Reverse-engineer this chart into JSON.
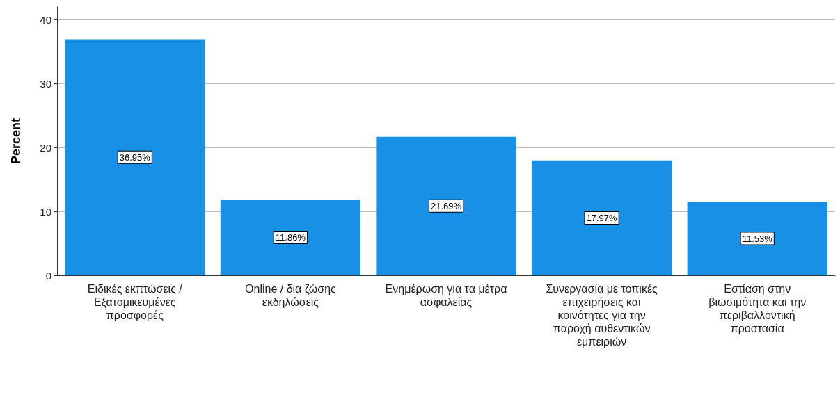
{
  "chart_data": {
    "type": "bar",
    "ylabel": "Percent",
    "categories": [
      "Ειδικές εκπτώσεις / Εξατομικευμένες προσφορές",
      "Online / δια ζώσης εκδηλώσεις",
      "Ενημέρωση για τα μέτρα ασφαλείας",
      "Συνεργασία με τοπικές επιχειρήσεις και κοινότητες για την παροχή αυθεντικών εμπειριών",
      "Εστίαση στην βιωσιμότητα και την περιβαλλοντική προστασία"
    ],
    "values": [
      36.95,
      11.86,
      21.69,
      17.97,
      11.53
    ],
    "value_labels": [
      "36.95%",
      "11.86%",
      "21.69%",
      "17.97%",
      "11.53%"
    ],
    "color": "#1790e6",
    "ylim": [
      0,
      42
    ],
    "yticks": [
      0,
      10,
      20,
      30,
      40
    ],
    "grid": "y"
  }
}
